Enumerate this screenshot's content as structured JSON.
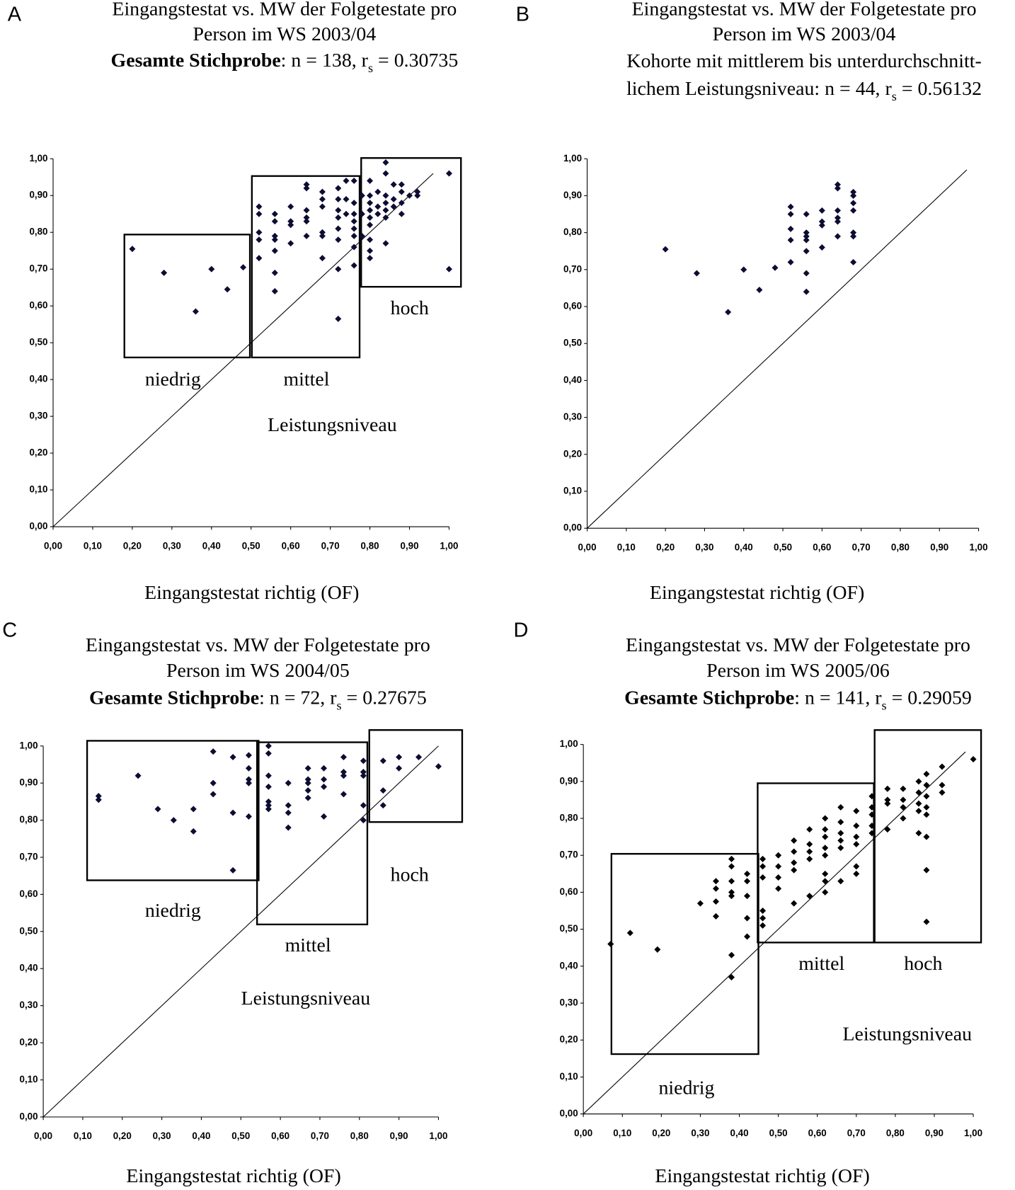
{
  "chart_data": [
    {
      "type": "scatter",
      "panel": "A",
      "title": [
        "Eingangstestat vs. MW der Folgetestate pro",
        "Person im WS 2003/04"
      ],
      "subtitle": [
        [
          {
            "text": "Gesamte Stichprobe",
            "bold": true
          },
          {
            "text": ": n = 138, r"
          },
          {
            "text": "s",
            "sub": true
          },
          {
            "text": " = 0.30735"
          }
        ]
      ],
      "x_label": "Eingangstestat richtig (OF)",
      "annotation": "Leistungsniveau",
      "color": "#0d0d33",
      "x": [
        0.2,
        0.28,
        0.36,
        0.4,
        0.44,
        0.48,
        0.52,
        0.52,
        0.52,
        0.52,
        0.52,
        0.56,
        0.56,
        0.56,
        0.56,
        0.56,
        0.56,
        0.56,
        0.6,
        0.6,
        0.6,
        0.6,
        0.64,
        0.64,
        0.64,
        0.64,
        0.64,
        0.64,
        0.68,
        0.68,
        0.68,
        0.68,
        0.68,
        0.68,
        0.72,
        0.72,
        0.72,
        0.72,
        0.72,
        0.72,
        0.72,
        0.72,
        0.74,
        0.74,
        0.74,
        0.76,
        0.76,
        0.76,
        0.76,
        0.76,
        0.76,
        0.76,
        0.76,
        0.78,
        0.78,
        0.78,
        0.8,
        0.8,
        0.8,
        0.8,
        0.8,
        0.8,
        0.8,
        0.8,
        0.8,
        0.82,
        0.82,
        0.82,
        0.84,
        0.84,
        0.84,
        0.84,
        0.84,
        0.84,
        0.84,
        0.86,
        0.86,
        0.86,
        0.88,
        0.88,
        0.88,
        0.88,
        0.9,
        0.92,
        0.92,
        1.0,
        1.0
      ],
      "values": [
        0.755,
        0.69,
        0.585,
        0.7,
        0.645,
        0.705,
        0.87,
        0.85,
        0.8,
        0.78,
        0.73,
        0.85,
        0.83,
        0.79,
        0.78,
        0.75,
        0.69,
        0.64,
        0.87,
        0.83,
        0.82,
        0.77,
        0.93,
        0.92,
        0.86,
        0.84,
        0.83,
        0.79,
        0.91,
        0.89,
        0.87,
        0.8,
        0.79,
        0.73,
        0.92,
        0.89,
        0.86,
        0.84,
        0.81,
        0.78,
        0.7,
        0.565,
        0.94,
        0.89,
        0.85,
        0.94,
        0.88,
        0.85,
        0.83,
        0.81,
        0.79,
        0.76,
        0.71,
        0.9,
        0.85,
        0.79,
        0.94,
        0.9,
        0.88,
        0.86,
        0.84,
        0.82,
        0.78,
        0.75,
        0.73,
        0.91,
        0.87,
        0.85,
        0.99,
        0.96,
        0.9,
        0.88,
        0.86,
        0.84,
        0.77,
        0.93,
        0.89,
        0.87,
        0.93,
        0.91,
        0.88,
        0.85,
        0.9,
        0.91,
        0.9,
        0.96,
        0.7
      ],
      "regions": [
        {
          "label": "niedrig",
          "xlim": [
            0.18,
            0.497
          ],
          "ylim": [
            0.46,
            0.794
          ]
        },
        {
          "label": "mittel",
          "xlim": [
            0.502,
            0.774
          ],
          "ylim": [
            0.46,
            0.953
          ]
        },
        {
          "label": "hoch",
          "xlim": [
            0.778,
            1.03
          ],
          "ylim": [
            0.652,
            1.002
          ]
        }
      ],
      "reference_line": {
        "x": [
          0,
          0.96
        ],
        "values": [
          0,
          0.96
        ]
      },
      "xlim": [
        0,
        1
      ],
      "ylim": [
        0,
        1
      ],
      "xticks": [
        {
          "value": 0,
          "label": "0,00"
        },
        {
          "value": 0.1,
          "label": "0,10"
        },
        {
          "value": 0.2,
          "label": "0,20"
        },
        {
          "value": 0.3,
          "label": "0,30"
        },
        {
          "value": 0.4,
          "label": "0,40"
        },
        {
          "value": 0.5,
          "label": "0,50"
        },
        {
          "value": 0.6,
          "label": "0,60"
        },
        {
          "value": 0.7,
          "label": "0,70"
        },
        {
          "value": 0.8,
          "label": "0,80"
        },
        {
          "value": 0.9,
          "label": "0,90"
        },
        {
          "value": 1,
          "label": "1,00"
        }
      ],
      "yticks": [
        {
          "value": 0,
          "label": "0,00"
        },
        {
          "value": 0.1,
          "label": "0,10"
        },
        {
          "value": 0.2,
          "label": "0,20"
        },
        {
          "value": 0.3,
          "label": "0,30"
        },
        {
          "value": 0.4,
          "label": "0,40"
        },
        {
          "value": 0.5,
          "label": "0,50"
        },
        {
          "value": 0.6,
          "label": "0,60"
        },
        {
          "value": 0.7,
          "label": "0,70"
        },
        {
          "value": 0.8,
          "label": "0,80"
        },
        {
          "value": 0.9,
          "label": "0,90"
        },
        {
          "value": 1,
          "label": "1,00"
        }
      ]
    },
    {
      "type": "scatter",
      "panel": "B",
      "title": [
        "Eingangstestat vs. MW der Folgetestate pro",
        "Person im WS 2003/04"
      ],
      "subtitle": [
        [
          {
            "text": "Kohorte mit mittlerem bis unterdurchschnitt-"
          }
        ],
        [
          {
            "text": "lichem Leistungsniveau: n = 44, r"
          },
          {
            "text": "s",
            "sub": true
          },
          {
            "text": " = 0.56132"
          }
        ]
      ],
      "x_label": "Eingangstestat richtig (OF)",
      "color": "#0d0d33",
      "x": [
        0.2,
        0.28,
        0.36,
        0.4,
        0.44,
        0.48,
        0.52,
        0.52,
        0.52,
        0.52,
        0.52,
        0.56,
        0.56,
        0.56,
        0.56,
        0.56,
        0.56,
        0.56,
        0.6,
        0.6,
        0.6,
        0.6,
        0.64,
        0.64,
        0.64,
        0.64,
        0.64,
        0.64,
        0.68,
        0.68,
        0.68,
        0.68,
        0.68,
        0.68,
        0.68
      ],
      "values": [
        0.755,
        0.69,
        0.585,
        0.7,
        0.645,
        0.705,
        0.87,
        0.85,
        0.81,
        0.78,
        0.72,
        0.85,
        0.8,
        0.79,
        0.78,
        0.75,
        0.69,
        0.64,
        0.86,
        0.83,
        0.82,
        0.76,
        0.93,
        0.92,
        0.86,
        0.84,
        0.83,
        0.79,
        0.91,
        0.9,
        0.88,
        0.86,
        0.8,
        0.79,
        0.72
      ],
      "reference_line": {
        "x": [
          0,
          0.97
        ],
        "values": [
          0,
          0.97
        ]
      },
      "xlim": [
        0,
        1
      ],
      "ylim": [
        0,
        1
      ],
      "xticks": [
        {
          "value": 0,
          "label": "0,00"
        },
        {
          "value": 0.1,
          "label": "0,10"
        },
        {
          "value": 0.2,
          "label": "0,20"
        },
        {
          "value": 0.3,
          "label": "0,30"
        },
        {
          "value": 0.4,
          "label": "0,40"
        },
        {
          "value": 0.5,
          "label": "0,50"
        },
        {
          "value": 0.6,
          "label": "0,60"
        },
        {
          "value": 0.7,
          "label": "0,70"
        },
        {
          "value": 0.8,
          "label": "0,80"
        },
        {
          "value": 0.9,
          "label": "0,90"
        },
        {
          "value": 1,
          "label": "1,00"
        }
      ],
      "yticks": [
        {
          "value": 0,
          "label": "0,00"
        },
        {
          "value": 0.1,
          "label": "0,10"
        },
        {
          "value": 0.2,
          "label": "0,20"
        },
        {
          "value": 0.3,
          "label": "0,30"
        },
        {
          "value": 0.4,
          "label": "0,40"
        },
        {
          "value": 0.5,
          "label": "0,50"
        },
        {
          "value": 0.6,
          "label": "0,60"
        },
        {
          "value": 0.7,
          "label": "0,70"
        },
        {
          "value": 0.8,
          "label": "0,80"
        },
        {
          "value": 0.9,
          "label": "0,90"
        },
        {
          "value": 1,
          "label": "1,00"
        }
      ]
    },
    {
      "type": "scatter",
      "panel": "C",
      "title": [
        "Eingangstestat vs. MW der Folgetestate pro",
        "Person  im WS 2004/05"
      ],
      "subtitle": [
        [
          {
            "text": "Gesamte Stichprobe",
            "bold": true
          },
          {
            "text": ": n = 72, r"
          },
          {
            "text": "s",
            "sub": true
          },
          {
            "text": " = 0.27675"
          }
        ]
      ],
      "x_label": "Eingangstestat richtig (OF)",
      "annotation": "Leistungsniveau",
      "color": "#0d0d33",
      "x": [
        0.14,
        0.14,
        0.24,
        0.29,
        0.33,
        0.38,
        0.38,
        0.43,
        0.43,
        0.43,
        0.48,
        0.48,
        0.48,
        0.52,
        0.52,
        0.52,
        0.52,
        0.52,
        0.57,
        0.57,
        0.57,
        0.57,
        0.57,
        0.57,
        0.57,
        0.62,
        0.62,
        0.62,
        0.62,
        0.67,
        0.67,
        0.67,
        0.67,
        0.67,
        0.71,
        0.71,
        0.71,
        0.71,
        0.76,
        0.76,
        0.76,
        0.76,
        0.81,
        0.81,
        0.81,
        0.81,
        0.81,
        0.86,
        0.86,
        0.86,
        0.9,
        0.9,
        0.95,
        1.0
      ],
      "values": [
        0.865,
        0.855,
        0.92,
        0.83,
        0.8,
        0.83,
        0.77,
        0.985,
        0.9,
        0.87,
        0.97,
        0.82,
        0.665,
        0.975,
        0.94,
        0.91,
        0.9,
        0.81,
        1.0,
        0.98,
        0.92,
        0.89,
        0.85,
        0.84,
        0.83,
        0.9,
        0.84,
        0.82,
        0.78,
        0.94,
        0.91,
        0.9,
        0.88,
        0.86,
        0.94,
        0.91,
        0.89,
        0.81,
        0.97,
        0.93,
        0.92,
        0.87,
        0.96,
        0.93,
        0.92,
        0.84,
        0.8,
        0.96,
        0.88,
        0.84,
        0.97,
        0.94,
        0.97,
        0.945
      ],
      "regions": [
        {
          "label": "niedrig",
          "xlim": [
            0.111,
            0.545
          ],
          "ylim": [
            0.638,
            1.014
          ]
        },
        {
          "label": "mittel",
          "xlim": [
            0.541,
            0.82
          ],
          "ylim": [
            0.519,
            1.01
          ]
        },
        {
          "label": "hoch",
          "xlim": [
            0.825,
            1.06
          ],
          "ylim": [
            0.795,
            1.043
          ]
        }
      ],
      "reference_line": {
        "x": [
          0,
          1
        ],
        "values": [
          0,
          1
        ]
      },
      "xlim": [
        0,
        1
      ],
      "ylim": [
        0,
        1
      ],
      "xticks": [
        {
          "value": 0,
          "label": "0,00"
        },
        {
          "value": 0.1,
          "label": "0,10"
        },
        {
          "value": 0.2,
          "label": "0,20"
        },
        {
          "value": 0.3,
          "label": "0,30"
        },
        {
          "value": 0.4,
          "label": "0,40"
        },
        {
          "value": 0.5,
          "label": "0,50"
        },
        {
          "value": 0.6,
          "label": "0,60"
        },
        {
          "value": 0.7,
          "label": "0,70"
        },
        {
          "value": 0.8,
          "label": "0,80"
        },
        {
          "value": 0.9,
          "label": "0,90"
        },
        {
          "value": 1,
          "label": "1,00"
        }
      ],
      "yticks": [
        {
          "value": 0,
          "label": "0,00"
        },
        {
          "value": 0.1,
          "label": "0,10"
        },
        {
          "value": 0.2,
          "label": "0,20"
        },
        {
          "value": 0.3,
          "label": "0,30"
        },
        {
          "value": 0.4,
          "label": "0,40"
        },
        {
          "value": 0.5,
          "label": "0,50"
        },
        {
          "value": 0.6,
          "label": "0,60"
        },
        {
          "value": 0.7,
          "label": "0,70"
        },
        {
          "value": 0.8,
          "label": "0,80"
        },
        {
          "value": 0.9,
          "label": "0,90"
        },
        {
          "value": 1,
          "label": "1,00"
        }
      ]
    },
    {
      "type": "scatter",
      "panel": "D",
      "title": [
        "Eingangstestat vs. MW der Folgetestate pro",
        "Person  im WS 2005/06"
      ],
      "subtitle": [
        [
          {
            "text": "Gesamte Stichprobe",
            "bold": true
          },
          {
            "text": ": n = 141, r"
          },
          {
            "text": "s",
            "sub": true
          },
          {
            "text": " = 0.29059"
          }
        ]
      ],
      "x_label": "Eingangstestat richtig (OF)",
      "annotation": "Leistungsniveau",
      "color": "#000000",
      "x": [
        0.07,
        0.12,
        0.19,
        0.3,
        0.34,
        0.34,
        0.34,
        0.34,
        0.38,
        0.38,
        0.38,
        0.38,
        0.38,
        0.38,
        0.38,
        0.42,
        0.42,
        0.42,
        0.42,
        0.42,
        0.46,
        0.46,
        0.46,
        0.46,
        0.46,
        0.46,
        0.5,
        0.5,
        0.5,
        0.5,
        0.54,
        0.54,
        0.54,
        0.54,
        0.54,
        0.58,
        0.58,
        0.58,
        0.58,
        0.58,
        0.62,
        0.62,
        0.62,
        0.62,
        0.62,
        0.62,
        0.62,
        0.62,
        0.66,
        0.66,
        0.66,
        0.66,
        0.66,
        0.66,
        0.7,
        0.7,
        0.7,
        0.7,
        0.7,
        0.7,
        0.74,
        0.74,
        0.74,
        0.74,
        0.74,
        0.78,
        0.78,
        0.78,
        0.78,
        0.82,
        0.82,
        0.82,
        0.82,
        0.86,
        0.86,
        0.86,
        0.86,
        0.86,
        0.88,
        0.88,
        0.88,
        0.88,
        0.88,
        0.88,
        0.88,
        0.88,
        0.92,
        0.92,
        0.92,
        1.0
      ],
      "values": [
        0.46,
        0.49,
        0.445,
        0.57,
        0.63,
        0.61,
        0.575,
        0.535,
        0.69,
        0.67,
        0.63,
        0.6,
        0.59,
        0.43,
        0.37,
        0.65,
        0.63,
        0.59,
        0.53,
        0.48,
        0.69,
        0.67,
        0.64,
        0.55,
        0.53,
        0.51,
        0.7,
        0.67,
        0.64,
        0.61,
        0.74,
        0.71,
        0.68,
        0.66,
        0.57,
        0.77,
        0.73,
        0.71,
        0.69,
        0.59,
        0.8,
        0.77,
        0.75,
        0.72,
        0.7,
        0.65,
        0.63,
        0.6,
        0.83,
        0.79,
        0.76,
        0.74,
        0.72,
        0.63,
        0.82,
        0.78,
        0.75,
        0.73,
        0.67,
        0.65,
        0.86,
        0.83,
        0.81,
        0.78,
        0.76,
        0.88,
        0.85,
        0.84,
        0.77,
        0.88,
        0.85,
        0.83,
        0.8,
        0.9,
        0.87,
        0.84,
        0.82,
        0.76,
        0.92,
        0.89,
        0.86,
        0.83,
        0.81,
        0.75,
        0.66,
        0.52,
        0.94,
        0.89,
        0.87,
        0.96
      ],
      "regions": [
        {
          "label": "niedrig",
          "xlim": [
            0.072,
            0.449
          ],
          "ylim": [
            0.162,
            0.704
          ]
        },
        {
          "label": "mittel",
          "xlim": [
            0.447,
            0.745
          ],
          "ylim": [
            0.464,
            0.895
          ]
        },
        {
          "label": "hoch",
          "xlim": [
            0.747,
            1.02
          ],
          "ylim": [
            0.464,
            1.039
          ]
        }
      ],
      "reference_line": {
        "x": [
          0,
          0.98
        ],
        "values": [
          0,
          0.98
        ]
      },
      "xlim": [
        0,
        1
      ],
      "ylim": [
        0,
        1
      ],
      "xticks": [
        {
          "value": 0,
          "label": "0,00"
        },
        {
          "value": 0.1,
          "label": "0,10"
        },
        {
          "value": 0.2,
          "label": "0,20"
        },
        {
          "value": 0.3,
          "label": "0,30"
        },
        {
          "value": 0.4,
          "label": "0,40"
        },
        {
          "value": 0.5,
          "label": "0,50"
        },
        {
          "value": 0.6,
          "label": "0,60"
        },
        {
          "value": 0.7,
          "label": "0,70"
        },
        {
          "value": 0.8,
          "label": "0,80"
        },
        {
          "value": 0.9,
          "label": "0,90"
        },
        {
          "value": 1,
          "label": "1,00"
        }
      ],
      "yticks": [
        {
          "value": 0,
          "label": "0,00"
        },
        {
          "value": 0.1,
          "label": "0,10"
        },
        {
          "value": 0.2,
          "label": "0,20"
        },
        {
          "value": 0.3,
          "label": "0,30"
        },
        {
          "value": 0.4,
          "label": "0,40"
        },
        {
          "value": 0.5,
          "label": "0,50"
        },
        {
          "value": 0.6,
          "label": "0,60"
        },
        {
          "value": 0.7,
          "label": "0,70"
        },
        {
          "value": 0.8,
          "label": "0,80"
        },
        {
          "value": 0.9,
          "label": "0,90"
        },
        {
          "value": 1,
          "label": "1,00"
        }
      ]
    }
  ]
}
